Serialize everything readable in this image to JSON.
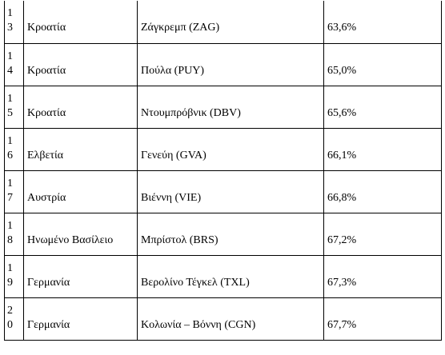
{
  "rows": [
    {
      "rank_line1": "1",
      "rank_line2": "3",
      "country": "Κροατία",
      "airport": "Ζάγκρεμπ (ZAG)",
      "percent": "63,6%"
    },
    {
      "rank_line1": "1",
      "rank_line2": "4",
      "country": "Κροατία",
      "airport": "Πούλα (PUY)",
      "percent": "65,0%"
    },
    {
      "rank_line1": "1",
      "rank_line2": "5",
      "country": "Κροατία",
      "airport": "Ντουμπρόβνικ (DBV)",
      "percent": "65,6%"
    },
    {
      "rank_line1": "1",
      "rank_line2": "6",
      "country": "Ελβετία",
      "airport": "Γενεύη (GVA)",
      "percent": "66,1%"
    },
    {
      "rank_line1": "1",
      "rank_line2": "7",
      "country": "Αυστρία",
      "airport": "Βιέννη (VIE)",
      "percent": "66,8%"
    },
    {
      "rank_line1": "1",
      "rank_line2": "8",
      "country": "Ηνωμένο Βασίλειο",
      "airport": "Μπρίστολ (BRS)",
      "percent": "67,2%"
    },
    {
      "rank_line1": "1",
      "rank_line2": "9",
      "country": "Γερμανία",
      "airport": "Βερολίνο Τέγκελ (TXL)",
      "percent": "67,3%"
    },
    {
      "rank_line1": "2",
      "rank_line2": "0",
      "country": "Γερμανία",
      "airport": "Κολωνία – Βόννη (CGN)",
      "percent": "67,7%"
    }
  ]
}
